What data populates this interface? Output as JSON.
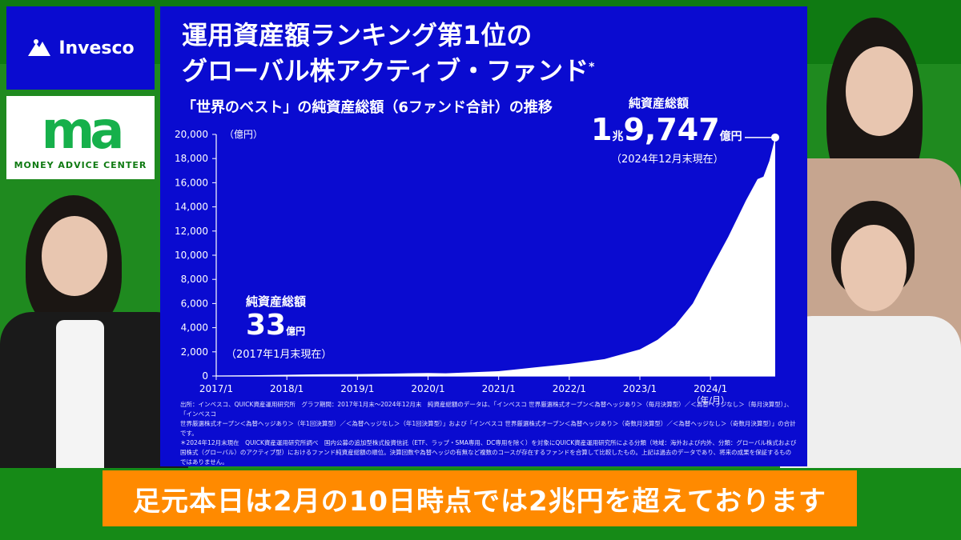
{
  "logos": {
    "invesco": "Invesco",
    "money_advice_center": "MONEY ADVICE CENTER"
  },
  "slide": {
    "title_line1": "運用資産額ランキング第1位の",
    "title_line2": "グローバル株アクティブ・ファンド",
    "title_mark": "*",
    "subtitle": "「世界のベスト」の純資産総額（6ファンド合計）の推移",
    "start_callout": {
      "label": "純資産総額",
      "value": "33",
      "unit": "億円",
      "date": "（2017年1月末現在）"
    },
    "end_callout": {
      "label": "純資産総額",
      "value_head": "1",
      "unit1": "兆",
      "value_tail": "9,747",
      "unit2": "億円",
      "date": "（2024年12月末現在）"
    },
    "footnote_lines": [
      "出所：インベスコ、QUICK資産運用研究所　グラフ期間：2017年1月末〜2024年12月末　純資産総額のデータは、「インベスコ 世界厳選株式オープン＜為替ヘッジあり＞（毎月決算型）／＜為替ヘッジなし＞（毎月決算型）」、「インベスコ",
      "世界厳選株式オープン＜為替ヘッジあり＞（年1回決算型）／＜為替ヘッジなし＞（年1回決算型）」および「インベスコ 世界厳選株式オープン＜為替ヘッジあり＞（奇数月決算型）／＜為替ヘッジなし＞（奇数月決算型）」の合計です。",
      "＊2024年12月末現在　QUICK資産運用研究所調べ　国内公募の追加型株式投資信託（ETF、ラップ・SMA専用、DC専用を除く）を対象にQUICK資産運用研究所による分類（地域：海外および内外、分類：グローバル株式および",
      "国株式（グローバル）のアクティブ型）におけるファンド純資産総額の順位。決算回数や為替ヘッジの有無など複数のコースが存在するファンドを合算して比較したもの。上記は過去のデータであり、将来の成果を保証するものではありません。"
    ]
  },
  "caption": "足元本日は2月の10日時点では2兆円を超えております",
  "colors": {
    "slide_bg": "#0a0bd0",
    "caption_bg": "#ff8a00",
    "background": "#1f8a1f",
    "ma_green": "#16b04b"
  },
  "chart_data": {
    "type": "area",
    "ylabel": "（億円）",
    "xlabel": "（年/月）",
    "ylim": [
      0,
      20000
    ],
    "yticks": [
      "0",
      "2,000",
      "4,000",
      "6,000",
      "8,000",
      "10,000",
      "12,000",
      "14,000",
      "16,000",
      "18,000",
      "20,000"
    ],
    "ytick_values": [
      0,
      2000,
      4000,
      6000,
      8000,
      10000,
      12000,
      14000,
      16000,
      18000,
      20000
    ],
    "xticks": [
      "2017/1",
      "2018/1",
      "2019/1",
      "2020/1",
      "2021/1",
      "2022/1",
      "2023/1",
      "2024/1"
    ],
    "xtick_values": [
      "2017-01",
      "2018-01",
      "2019-01",
      "2020-01",
      "2021-01",
      "2022-01",
      "2023-01",
      "2024-01"
    ],
    "x_range": [
      "2017-01",
      "2024-12"
    ],
    "series": [
      {
        "values": [
          {
            "x": "2017-01",
            "y": 33
          },
          {
            "x": "2017-07",
            "y": 60
          },
          {
            "x": "2018-01",
            "y": 100
          },
          {
            "x": "2018-07",
            "y": 140
          },
          {
            "x": "2019-01",
            "y": 160
          },
          {
            "x": "2019-07",
            "y": 200
          },
          {
            "x": "2020-01",
            "y": 250
          },
          {
            "x": "2020-04",
            "y": 220
          },
          {
            "x": "2020-07",
            "y": 280
          },
          {
            "x": "2021-01",
            "y": 400
          },
          {
            "x": "2021-07",
            "y": 700
          },
          {
            "x": "2022-01",
            "y": 1000
          },
          {
            "x": "2022-07",
            "y": 1400
          },
          {
            "x": "2023-01",
            "y": 2200
          },
          {
            "x": "2023-04",
            "y": 3000
          },
          {
            "x": "2023-07",
            "y": 4200
          },
          {
            "x": "2023-10",
            "y": 6000
          },
          {
            "x": "2024-01",
            "y": 8800
          },
          {
            "x": "2024-04",
            "y": 11500
          },
          {
            "x": "2024-07",
            "y": 14500
          },
          {
            "x": "2024-09",
            "y": 16300
          },
          {
            "x": "2024-10",
            "y": 16500
          },
          {
            "x": "2024-11",
            "y": 17800
          },
          {
            "x": "2024-12",
            "y": 19747
          }
        ]
      }
    ]
  }
}
